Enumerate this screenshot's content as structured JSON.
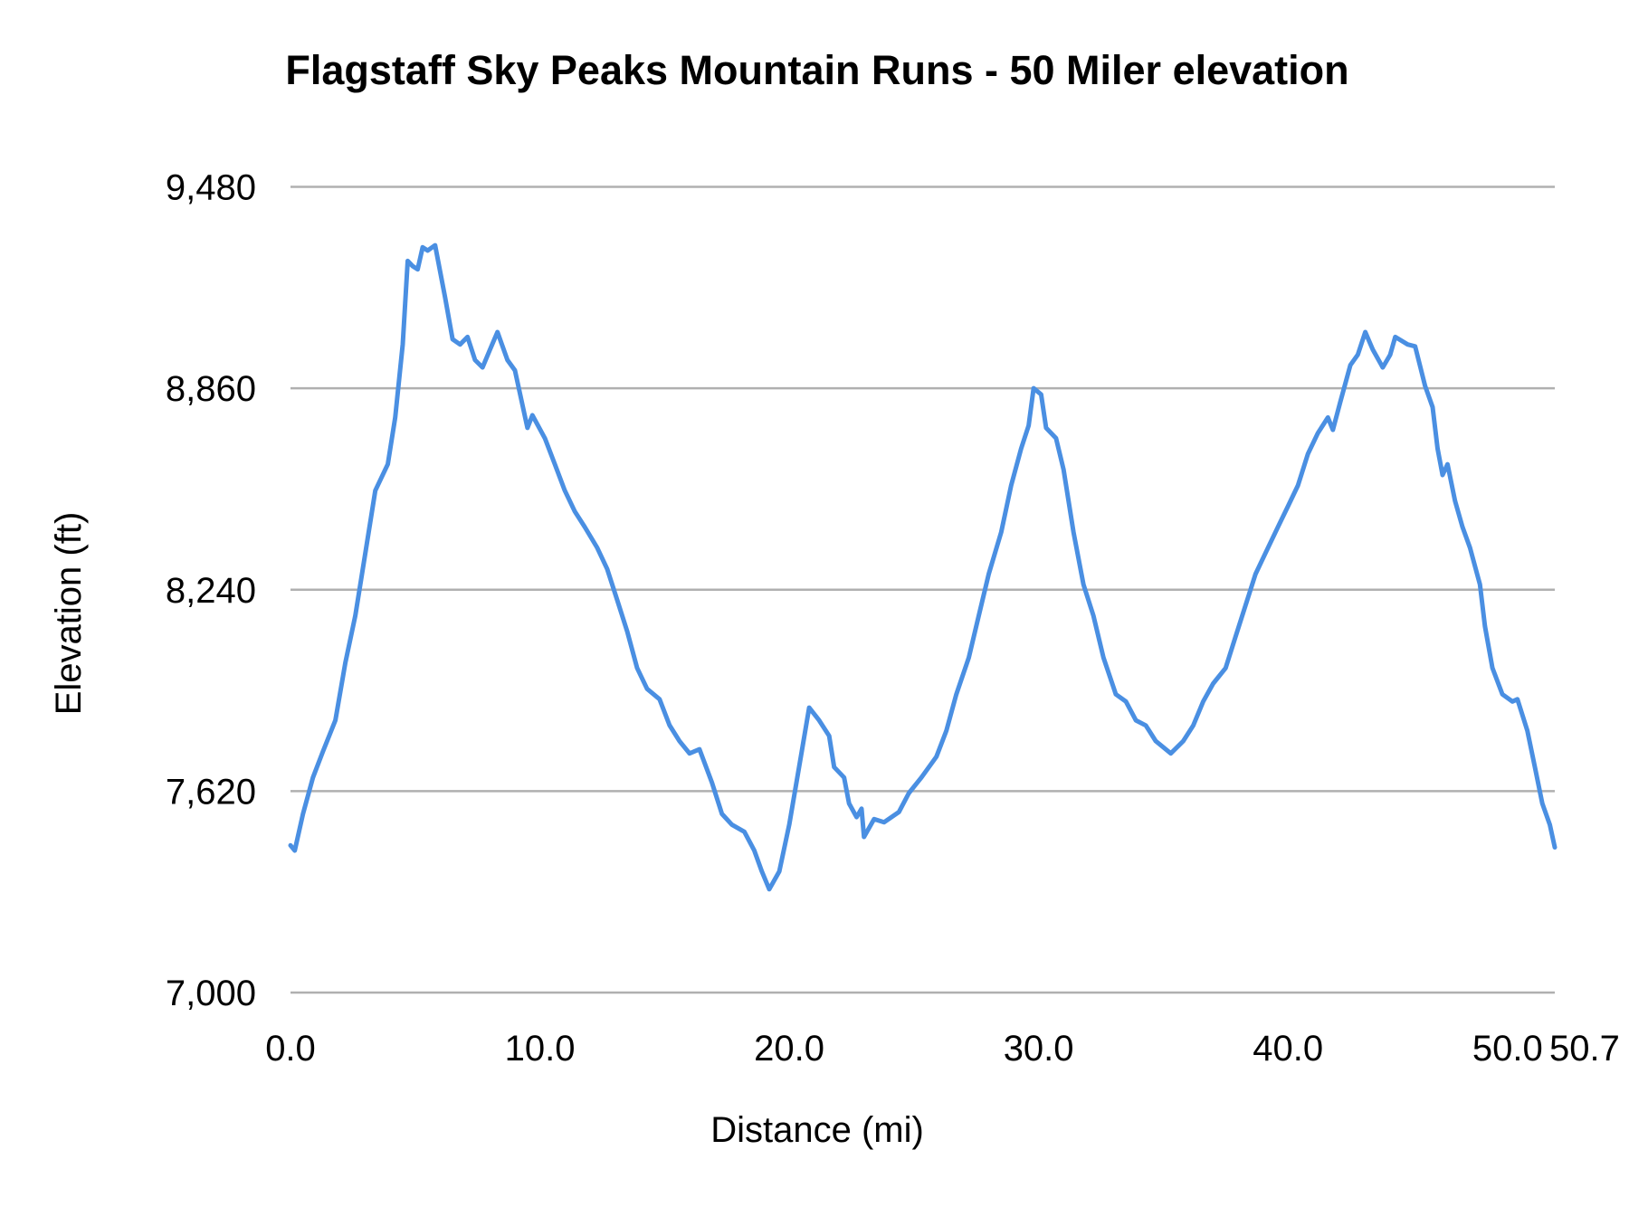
{
  "chart_data": {
    "type": "line",
    "title": "Flagstaff Sky Peaks Mountain Runs - 50 Miler elevation",
    "xlabel": "Distance (mi)",
    "ylabel": "Elevation (ft)",
    "xlim": [
      0,
      50.7
    ],
    "ylim": [
      7000,
      9480
    ],
    "x_ticks": [
      "0.0",
      "10.0",
      "20.0",
      "30.0",
      "40.0",
      "50.0",
      "50.7"
    ],
    "x_tick_values": [
      0,
      10,
      20,
      30,
      40,
      50,
      50.7
    ],
    "y_ticks": [
      "7,000",
      "7,620",
      "8,240",
      "8,860",
      "9,480"
    ],
    "y_tick_values": [
      7000,
      7620,
      8240,
      8860,
      9480
    ],
    "grid": "horizontal",
    "legend": "none",
    "line_color": "#4a8fe2",
    "grid_color": "#b0b0b0",
    "series": [
      {
        "x": [
          0,
          0.17,
          0.5,
          0.9,
          1.3,
          1.8,
          2.2,
          2.6,
          3.0,
          3.4,
          3.9,
          4.2,
          4.5,
          4.7,
          4.9,
          5.1,
          5.3,
          5.5,
          5.8,
          6.2,
          6.5,
          6.8,
          7.1,
          7.4,
          7.7,
          8.0,
          8.3,
          8.7,
          9.0,
          9.5,
          9.7,
          10.2,
          10.6,
          11.0,
          11.4,
          11.8,
          12.3,
          12.7,
          13.1,
          13.5,
          13.9,
          14.3,
          14.8,
          15.2,
          15.6,
          16.0,
          16.4,
          16.9,
          17.3,
          17.7,
          18.2,
          18.6,
          18.9,
          19.2,
          19.6,
          20.0,
          20.5,
          20.8,
          21.2,
          21.6,
          21.8,
          22.2,
          22.4,
          22.7,
          22.9,
          23.0,
          23.4,
          23.8,
          24.4,
          24.8,
          25.3,
          25.9,
          26.3,
          26.7,
          27.2,
          27.6,
          28.0,
          28.5,
          28.9,
          29.3,
          29.6,
          29.8,
          30.1,
          30.3,
          30.7,
          31.0,
          31.4,
          31.8,
          32.2,
          32.6,
          33.1,
          33.5,
          33.9,
          34.3,
          34.7,
          35.3,
          35.8,
          36.2,
          36.6,
          37.0,
          37.5,
          37.9,
          38.3,
          38.7,
          39.2,
          39.6,
          40.0,
          40.4,
          40.8,
          41.2,
          41.6,
          41.8,
          42.1,
          42.5,
          42.8,
          43.1,
          43.4,
          43.8,
          44.1,
          44.3,
          44.8,
          45.1,
          45.5,
          45.8,
          46.0,
          46.2,
          46.4,
          46.7,
          47.0,
          47.3,
          47.7,
          47.9,
          48.2,
          48.6,
          49.0,
          49.2,
          49.6,
          49.9,
          50.2,
          50.5,
          50.7
        ],
        "y": [
          7453,
          7437,
          7550,
          7662,
          7742,
          7838,
          8015,
          8160,
          8353,
          8545,
          8626,
          8770,
          8995,
          9252,
          9236,
          9226,
          9294,
          9284,
          9300,
          9140,
          9011,
          8995,
          9018,
          8947,
          8924,
          8979,
          9033,
          8947,
          8915,
          8738,
          8777,
          8706,
          8626,
          8545,
          8481,
          8433,
          8369,
          8304,
          8208,
          8112,
          7999,
          7935,
          7903,
          7823,
          7774,
          7736,
          7749,
          7646,
          7550,
          7517,
          7495,
          7437,
          7373,
          7318,
          7373,
          7517,
          7742,
          7877,
          7838,
          7790,
          7694,
          7662,
          7582,
          7540,
          7566,
          7479,
          7534,
          7524,
          7556,
          7614,
          7662,
          7726,
          7806,
          7918,
          8031,
          8160,
          8288,
          8417,
          8561,
          8674,
          8745,
          8860,
          8841,
          8738,
          8706,
          8610,
          8417,
          8256,
          8160,
          8031,
          7918,
          7896,
          7838,
          7822,
          7774,
          7736,
          7774,
          7822,
          7896,
          7951,
          7999,
          8096,
          8192,
          8288,
          8369,
          8433,
          8497,
          8561,
          8658,
          8722,
          8770,
          8732,
          8818,
          8931,
          8963,
          9033,
          8979,
          8924,
          8963,
          9018,
          8995,
          8989,
          8867,
          8802,
          8674,
          8593,
          8626,
          8513,
          8433,
          8369,
          8256,
          8128,
          7999,
          7918,
          7896,
          7903,
          7806,
          7694,
          7582,
          7517,
          7447
        ]
      }
    ]
  }
}
